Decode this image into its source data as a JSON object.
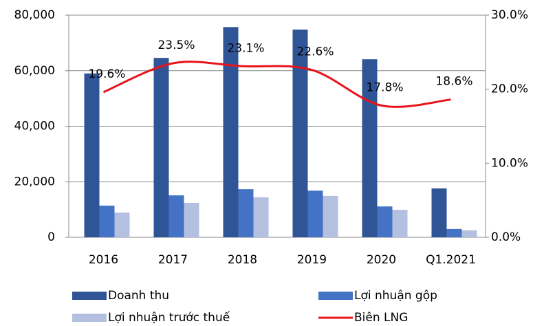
{
  "chart_data": {
    "type": "bar-line",
    "categories": [
      "2016",
      "2017",
      "2018",
      "2019",
      "2020",
      "Q1.2021"
    ],
    "series": [
      {
        "name": "Doanh thu",
        "type": "bar",
        "color": "#2f5597",
        "values": [
          59000,
          64600,
          75700,
          74800,
          64100,
          17600
        ]
      },
      {
        "name": "Lợi nhuận gộp",
        "type": "bar",
        "color": "#4472c4",
        "values": [
          11400,
          15100,
          17300,
          16800,
          11100,
          3000
        ]
      },
      {
        "name": "Lợi nhuận trước thuế",
        "type": "bar",
        "color": "#b4c0e0",
        "values": [
          8900,
          12400,
          14400,
          14900,
          9900,
          2500
        ]
      },
      {
        "name": "Biên LNG",
        "type": "line",
        "axis": "y2",
        "color": "#e8141b",
        "values": [
          19.6,
          23.5,
          23.1,
          22.6,
          17.8,
          18.6
        ],
        "value_labels": [
          "19.6%",
          "23.5%",
          "23.1%",
          "22.6%",
          "17.8%",
          "18.6%"
        ]
      }
    ],
    "ylim": [
      0,
      80000
    ],
    "yticks": [
      0,
      {
        "value": 20000,
        "label": "20,000"
      },
      {
        "value": 40000,
        "label": "40,000"
      },
      {
        "value": 60000,
        "label": "60,000"
      },
      {
        "value": 80000,
        "label": "80,000"
      }
    ],
    "y2lim": [
      0,
      30
    ],
    "y2ticks": [
      {
        "value": 0,
        "label": "0.0%"
      },
      {
        "value": 10,
        "label": "10.0%"
      },
      {
        "value": 20,
        "label": "20.0%"
      },
      {
        "value": 30,
        "label": "30.0%"
      }
    ],
    "grid": true,
    "legend": "bottom"
  }
}
